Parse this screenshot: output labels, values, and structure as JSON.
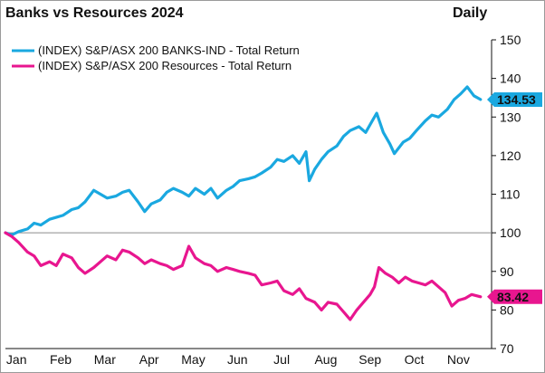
{
  "chart_data": {
    "type": "line",
    "title": "Banks vs Resources 2024",
    "frequency": "Daily",
    "xlabel": "",
    "ylabel": "",
    "ylim": [
      70,
      150
    ],
    "yticks": [
      70,
      80,
      90,
      100,
      110,
      120,
      130,
      140,
      150
    ],
    "reference_line": 100,
    "grid": false,
    "legend_position": "top-left",
    "x_range": [
      1,
      23
    ],
    "x_ticks": [
      {
        "label": "Jan",
        "x": 1.5
      },
      {
        "label": "Feb",
        "x": 3.5
      },
      {
        "label": "Mar",
        "x": 5.5
      },
      {
        "label": "Apr",
        "x": 7.5
      },
      {
        "label": "May",
        "x": 9.5
      },
      {
        "label": "Jun",
        "x": 11.5
      },
      {
        "label": "Jul",
        "x": 13.5
      },
      {
        "label": "Aug",
        "x": 15.5
      },
      {
        "label": "Sep",
        "x": 17.5
      },
      {
        "label": "Oct",
        "x": 19.5
      },
      {
        "label": "Nov",
        "x": 21.5
      }
    ],
    "series": [
      {
        "name": "(INDEX) S&P/ASX 200 BANKS-IND - Total Return",
        "color": "#1aa8e0",
        "last_value": "134.53",
        "points": [
          [
            1.0,
            100
          ],
          [
            1.3,
            99.5
          ],
          [
            1.6,
            100.3
          ],
          [
            2.0,
            101
          ],
          [
            2.3,
            102.5
          ],
          [
            2.6,
            102
          ],
          [
            3.0,
            103.5
          ],
          [
            3.3,
            104
          ],
          [
            3.6,
            104.5
          ],
          [
            4.0,
            106
          ],
          [
            4.3,
            106.5
          ],
          [
            4.6,
            108
          ],
          [
            5.0,
            111
          ],
          [
            5.3,
            110
          ],
          [
            5.6,
            109
          ],
          [
            6.0,
            109.5
          ],
          [
            6.3,
            110.5
          ],
          [
            6.6,
            111
          ],
          [
            7.0,
            108
          ],
          [
            7.3,
            105.5
          ],
          [
            7.6,
            107.5
          ],
          [
            8.0,
            108.5
          ],
          [
            8.3,
            110.5
          ],
          [
            8.6,
            111.5
          ],
          [
            9.0,
            110.5
          ],
          [
            9.3,
            109.5
          ],
          [
            9.6,
            111.5
          ],
          [
            10.0,
            110
          ],
          [
            10.3,
            111.5
          ],
          [
            10.6,
            109
          ],
          [
            11.0,
            111
          ],
          [
            11.3,
            112
          ],
          [
            11.6,
            113.5
          ],
          [
            12.0,
            114
          ],
          [
            12.3,
            114.5
          ],
          [
            12.6,
            115.5
          ],
          [
            13.0,
            117
          ],
          [
            13.3,
            119
          ],
          [
            13.6,
            118.5
          ],
          [
            14.0,
            120
          ],
          [
            14.3,
            118
          ],
          [
            14.6,
            121
          ],
          [
            14.75,
            113.5
          ],
          [
            15.0,
            116.5
          ],
          [
            15.3,
            119
          ],
          [
            15.6,
            121
          ],
          [
            16.0,
            122.5
          ],
          [
            16.3,
            125
          ],
          [
            16.6,
            126.5
          ],
          [
            17.0,
            127.5
          ],
          [
            17.3,
            126
          ],
          [
            17.6,
            129
          ],
          [
            17.8,
            131
          ],
          [
            18.1,
            126
          ],
          [
            18.4,
            123
          ],
          [
            18.6,
            120.5
          ],
          [
            19.0,
            123.5
          ],
          [
            19.3,
            124.5
          ],
          [
            19.6,
            126.5
          ],
          [
            20.0,
            129
          ],
          [
            20.3,
            130.5
          ],
          [
            20.6,
            130
          ],
          [
            21.0,
            132
          ],
          [
            21.3,
            134.5
          ],
          [
            21.6,
            136
          ],
          [
            21.9,
            137.8
          ],
          [
            22.2,
            135.5
          ],
          [
            22.5,
            134.53
          ]
        ]
      },
      {
        "name": "(INDEX) S&P/ASX 200 Resources - Total Return",
        "color": "#e8168f",
        "last_value": "83.42",
        "points": [
          [
            1.0,
            100
          ],
          [
            1.3,
            99
          ],
          [
            1.6,
            97.5
          ],
          [
            2.0,
            95
          ],
          [
            2.3,
            94
          ],
          [
            2.6,
            91.5
          ],
          [
            3.0,
            92.5
          ],
          [
            3.3,
            91.5
          ],
          [
            3.6,
            94.5
          ],
          [
            4.0,
            93.5
          ],
          [
            4.3,
            91
          ],
          [
            4.6,
            89.5
          ],
          [
            5.0,
            91
          ],
          [
            5.3,
            92.5
          ],
          [
            5.6,
            94
          ],
          [
            6.0,
            93
          ],
          [
            6.3,
            95.5
          ],
          [
            6.6,
            95
          ],
          [
            7.0,
            93.5
          ],
          [
            7.3,
            92
          ],
          [
            7.6,
            93
          ],
          [
            8.0,
            92
          ],
          [
            8.3,
            91.5
          ],
          [
            8.6,
            90.5
          ],
          [
            9.0,
            91.5
          ],
          [
            9.3,
            96.5
          ],
          [
            9.6,
            93.5
          ],
          [
            10.0,
            92
          ],
          [
            10.3,
            91.5
          ],
          [
            10.6,
            90
          ],
          [
            11.0,
            91
          ],
          [
            11.3,
            90.5
          ],
          [
            11.6,
            90
          ],
          [
            12.0,
            89.5
          ],
          [
            12.3,
            89
          ],
          [
            12.6,
            86.5
          ],
          [
            13.0,
            87
          ],
          [
            13.3,
            87.5
          ],
          [
            13.6,
            85
          ],
          [
            14.0,
            84
          ],
          [
            14.3,
            85.5
          ],
          [
            14.6,
            83
          ],
          [
            15.0,
            82
          ],
          [
            15.3,
            80
          ],
          [
            15.6,
            82
          ],
          [
            16.0,
            81.5
          ],
          [
            16.3,
            79.5
          ],
          [
            16.6,
            77.5
          ],
          [
            16.9,
            80
          ],
          [
            17.2,
            82
          ],
          [
            17.5,
            84
          ],
          [
            17.7,
            86
          ],
          [
            17.9,
            91
          ],
          [
            18.2,
            89.5
          ],
          [
            18.5,
            88.5
          ],
          [
            18.8,
            87
          ],
          [
            19.1,
            88.5
          ],
          [
            19.4,
            87.5
          ],
          [
            19.7,
            87
          ],
          [
            20.0,
            86.5
          ],
          [
            20.3,
            87.5
          ],
          [
            20.6,
            86
          ],
          [
            20.9,
            84.5
          ],
          [
            21.2,
            81
          ],
          [
            21.5,
            82.5
          ],
          [
            21.8,
            83
          ],
          [
            22.1,
            84
          ],
          [
            22.5,
            83.42
          ]
        ]
      }
    ]
  }
}
